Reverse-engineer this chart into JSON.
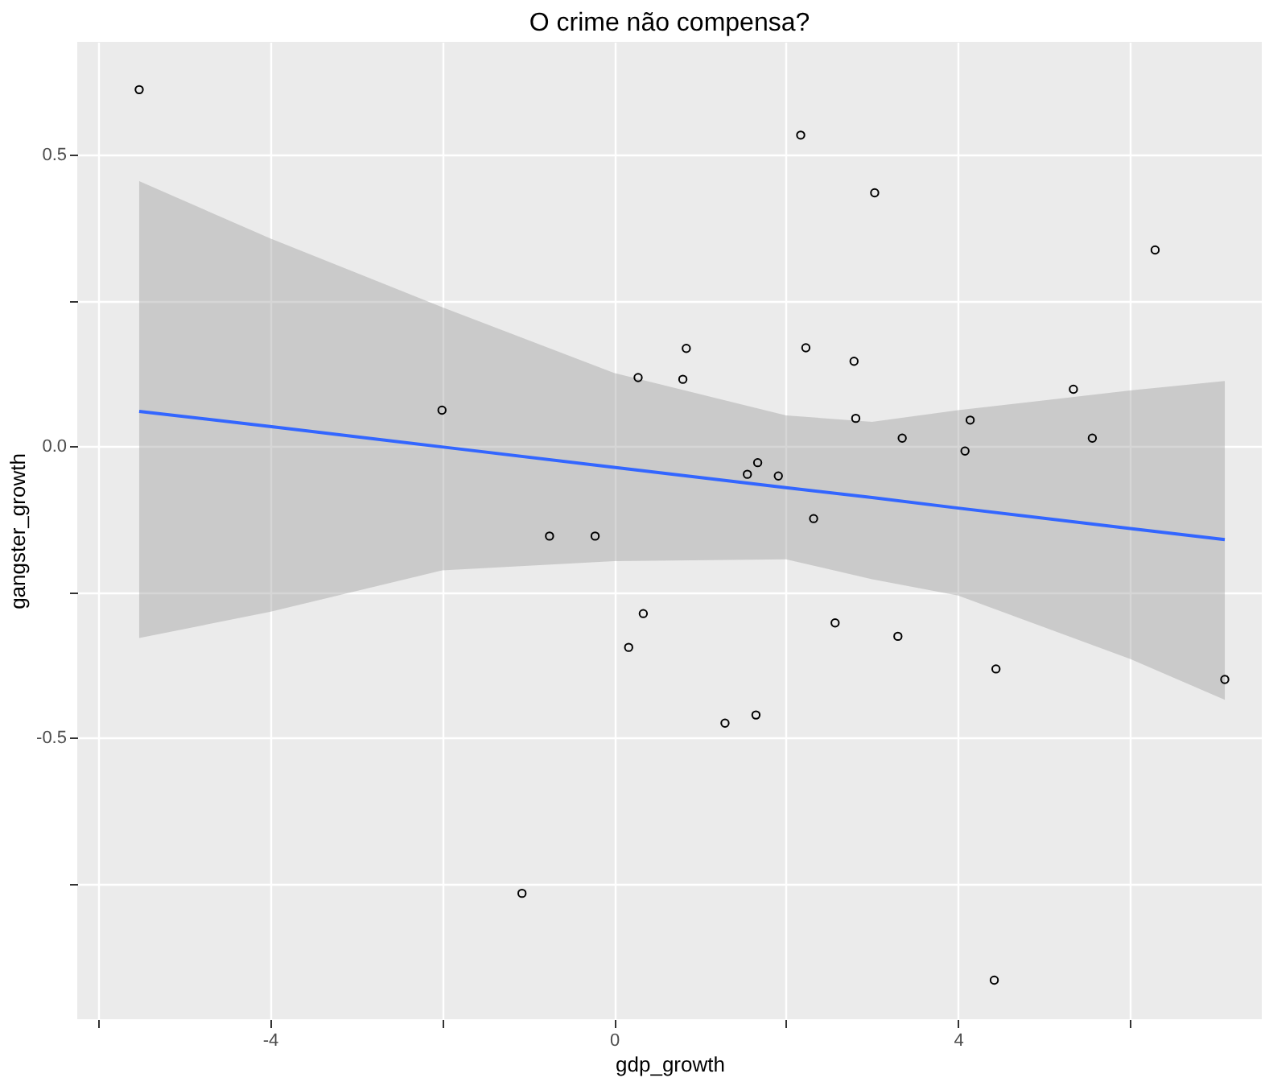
{
  "chart_data": {
    "type": "scatter",
    "title": "O crime não compensa?",
    "xlabel": "gdp_growth",
    "ylabel": "gangster_growth",
    "xlim": [
      -6.24,
      7.53
    ],
    "ylim": [
      -0.983,
      0.694
    ],
    "xticks": [
      {
        "value": -6,
        "label": null
      },
      -4,
      {
        "value": -2,
        "label": null
      },
      0,
      {
        "value": 2,
        "label": null
      },
      4,
      {
        "value": 6,
        "label": null
      }
    ],
    "yticks": [
      {
        "value": -0.75,
        "label": null
      },
      -0.5,
      {
        "value": -0.25,
        "label": null
      },
      {
        "value": 0,
        "label": "0.0"
      },
      {
        "value": 0.25,
        "label": null
      },
      0.5
    ],
    "grid": true,
    "series": [
      {
        "marker": "circle",
        "color": "#000000",
        "x": [
          -5.52,
          -2.0,
          -0.75,
          -0.22,
          0.28,
          0.8,
          0.84,
          0.17,
          0.34,
          -1.07,
          1.29,
          1.65,
          1.55,
          1.67,
          1.91,
          2.17,
          2.23,
          2.32,
          2.57,
          2.79,
          2.81,
          3.03,
          3.3,
          3.35,
          4.08,
          4.14,
          4.44,
          4.42,
          5.34,
          5.56,
          6.29,
          7.1
        ],
        "values": [
          0.612,
          0.062,
          -0.154,
          -0.154,
          0.118,
          0.115,
          0.168,
          -0.345,
          -0.287,
          -0.767,
          -0.475,
          -0.461,
          -0.048,
          -0.028,
          -0.051,
          0.534,
          0.169,
          -0.124,
          -0.303,
          0.146,
          0.048,
          0.435,
          -0.326,
          0.014,
          -0.008,
          0.045,
          -0.382,
          -0.916,
          0.098,
          0.014,
          0.337,
          -0.4
        ]
      },
      {
        "type": "line",
        "marker": "none",
        "color": "#3366ff",
        "x": [
          -5.52,
          -4,
          -2,
          0,
          2,
          3,
          4,
          6,
          7.1
        ],
        "values": [
          0.06,
          0.034,
          -0.001,
          -0.036,
          -0.071,
          -0.088,
          -0.106,
          -0.141,
          -0.16
        ],
        "lower": [
          -0.329,
          -0.284,
          -0.213,
          -0.197,
          -0.194,
          -0.228,
          -0.256,
          -0.365,
          -0.435
        ],
        "upper": [
          0.455,
          0.357,
          0.239,
          0.126,
          0.053,
          0.042,
          0.062,
          0.096,
          0.112
        ]
      }
    ]
  }
}
